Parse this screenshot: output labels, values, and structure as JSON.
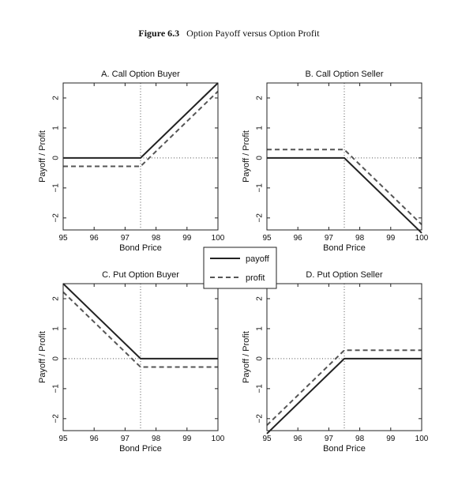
{
  "figure": {
    "number": "Figure 6.3",
    "caption": "Option Payoff versus Option Profit"
  },
  "legend": {
    "payoff_label": "payoff",
    "profit_label": "profit",
    "placement": "center"
  },
  "colors": {
    "payoff": "#222222",
    "profit": "#555555"
  },
  "chart_data": [
    {
      "type": "line",
      "title": "A. Call Option Buyer",
      "xlabel": "Bond Price",
      "ylabel": "Payoff / Profit",
      "xlim": [
        95,
        100
      ],
      "ylim": [
        -2.4,
        2.5
      ],
      "xticks": [
        95,
        96,
        97,
        98,
        99,
        100
      ],
      "yticks": [
        -2,
        -1,
        0,
        1,
        2
      ],
      "strike": 97.5,
      "grid": false,
      "series": [
        {
          "name": "payoff",
          "x": [
            95,
            97.5,
            100
          ],
          "y": [
            0,
            0,
            2.5
          ]
        },
        {
          "name": "profit",
          "x": [
            95,
            97.5,
            100
          ],
          "y": [
            -0.28,
            -0.28,
            2.22
          ]
        }
      ]
    },
    {
      "type": "line",
      "title": "B. Call Option Seller",
      "xlabel": "Bond Price",
      "ylabel": "Payoff / Profit",
      "xlim": [
        95,
        100
      ],
      "ylim": [
        -2.4,
        2.5
      ],
      "xticks": [
        95,
        96,
        97,
        98,
        99,
        100
      ],
      "yticks": [
        -2,
        -1,
        0,
        1,
        2
      ],
      "strike": 97.5,
      "grid": false,
      "series": [
        {
          "name": "payoff",
          "x": [
            95,
            97.5,
            100
          ],
          "y": [
            0,
            0,
            -2.5
          ]
        },
        {
          "name": "profit",
          "x": [
            95,
            97.5,
            100
          ],
          "y": [
            0.28,
            0.28,
            -2.22
          ]
        }
      ]
    },
    {
      "type": "line",
      "title": "C. Put Option Buyer",
      "xlabel": "Bond Price",
      "ylabel": "Payoff / Profit",
      "xlim": [
        95,
        100
      ],
      "ylim": [
        -2.4,
        2.5
      ],
      "xticks": [
        95,
        96,
        97,
        98,
        99,
        100
      ],
      "yticks": [
        -2,
        -1,
        0,
        1,
        2
      ],
      "strike": 97.5,
      "grid": false,
      "series": [
        {
          "name": "payoff",
          "x": [
            95,
            97.5,
            100
          ],
          "y": [
            2.5,
            0,
            0
          ]
        },
        {
          "name": "profit",
          "x": [
            95,
            97.5,
            100
          ],
          "y": [
            2.22,
            -0.28,
            -0.28
          ]
        }
      ]
    },
    {
      "type": "line",
      "title": "D. Put Option Seller",
      "xlabel": "Bond Price",
      "ylabel": "Payoff / Profit",
      "xlim": [
        95,
        100
      ],
      "ylim": [
        -2.4,
        2.5
      ],
      "xticks": [
        95,
        96,
        97,
        98,
        99,
        100
      ],
      "yticks": [
        -2,
        -1,
        0,
        1,
        2
      ],
      "strike": 97.5,
      "grid": false,
      "series": [
        {
          "name": "payoff",
          "x": [
            95,
            97.5,
            100
          ],
          "y": [
            -2.5,
            0,
            0
          ]
        },
        {
          "name": "profit",
          "x": [
            95,
            97.5,
            100
          ],
          "y": [
            -2.22,
            0.28,
            0.28
          ]
        }
      ]
    }
  ]
}
